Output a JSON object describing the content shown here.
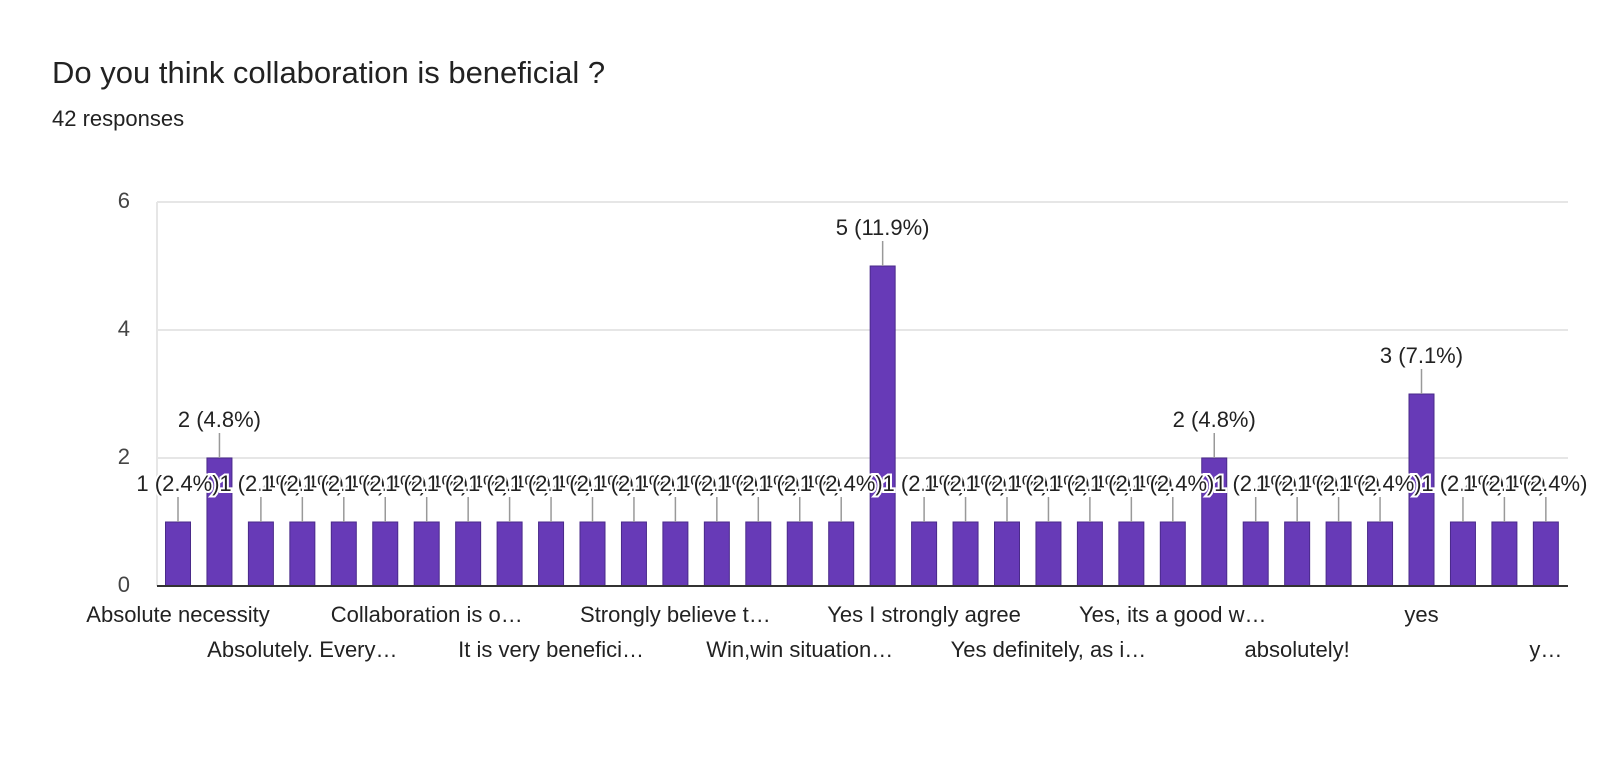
{
  "chart_data": {
    "type": "bar",
    "title": "Do you think collaboration is beneficial ?",
    "subtitle": "42 responses",
    "categories": [
      "Absolute necessity",
      null,
      null,
      "Absolutely. Every…",
      null,
      null,
      "Collaboration is o…",
      null,
      null,
      "It is very benefici…",
      null,
      null,
      "Strongly believe t…",
      null,
      null,
      "Win,win situation…",
      null,
      null,
      "Yes I strongly agree",
      null,
      null,
      "Yes definitely, as i…",
      null,
      null,
      "Yes, its a good w…",
      null,
      null,
      "absolutely!",
      null,
      null,
      "yes",
      null,
      null,
      "y…"
    ],
    "values": [
      1,
      2,
      1,
      1,
      1,
      1,
      1,
      1,
      1,
      1,
      1,
      1,
      1,
      1,
      1,
      1,
      1,
      5,
      1,
      1,
      1,
      1,
      1,
      1,
      1,
      2,
      1,
      1,
      1,
      1,
      3,
      1,
      1,
      1
    ],
    "value_labels": [
      "1 (2.4%)",
      "2 (4.8%)",
      "1 (2.4%)",
      "1 (2.4%)",
      "1 (2.4%)",
      "1 (2.4%)",
      "1 (2.4%)",
      "1 (2.4%)",
      "1 (2.4%)",
      "1 (2.4%)",
      "1 (2.4%)",
      "1 (2.4%)",
      "1 (2.4%)",
      "1 (2.4%)",
      "1 (2.4%)",
      "1 (2.4%)",
      "1 (2.4%)",
      "5 (11.9%)",
      "1 (2.4%)",
      "1 (2.4%)",
      "1 (2.4%)",
      "1 (2.4%)",
      "1 (2.4%)",
      "1 (2.4%)",
      "1 (2.4%)",
      "2 (4.8%)",
      "1 (2.4%)",
      "1 (2.4%)",
      "1 (2.4%)",
      "1 (2.4%)",
      "3 (7.1%)",
      "1 (2.4%)",
      "1 (2.4%)",
      "1 (2.4%)"
    ],
    "color": "#673ab7",
    "ylim": [
      0,
      6
    ],
    "yticks": [
      0,
      2,
      4,
      6
    ],
    "grid": true
  }
}
